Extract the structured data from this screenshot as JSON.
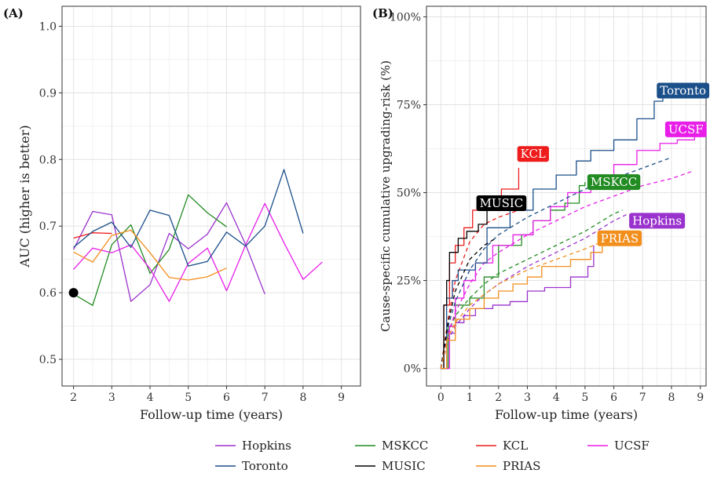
{
  "figure": {
    "legend_order": [
      "Hopkins",
      "MSKCC",
      "KCL",
      "UCSF",
      "Toronto",
      "MUSIC",
      "PRIAS"
    ],
    "colors": {
      "Hopkins": "#9a32cd",
      "MSKCC": "#228b22",
      "KCL": "#ee1c1c",
      "UCSF": "#e81ee8",
      "Toronto": "#1b4f8a",
      "MUSIC": "#000000",
      "PRIAS": "#f28e1c"
    }
  },
  "chart_data": [
    {
      "panel_label": "(A)",
      "type": "line",
      "xlabel": "Follow-up time (years)",
      "ylabel": "AUC (higher is better)",
      "xlim": [
        1.7,
        9.5
      ],
      "ylim": [
        0.46,
        1.03
      ],
      "xticks": [
        "2",
        "3",
        "4",
        "5",
        "6",
        "7",
        "8",
        "9"
      ],
      "yticks": [
        "0.5",
        "0.6",
        "0.7",
        "0.8",
        "0.9",
        "1.0"
      ],
      "grid": true,
      "series": [
        {
          "name": "Hopkins",
          "x": [
            2,
            2.5,
            3,
            3.5,
            4,
            4.5,
            5,
            5.5,
            6,
            6.5,
            7
          ],
          "y": [
            0.665,
            0.722,
            0.717,
            0.587,
            0.612,
            0.689,
            0.666,
            0.688,
            0.735,
            0.672,
            0.598
          ]
        },
        {
          "name": "MSKCC",
          "x": [
            2,
            2.5,
            3,
            3.5,
            4,
            4.5,
            5,
            5.5,
            6
          ],
          "y": [
            0.598,
            0.581,
            0.672,
            0.702,
            0.629,
            0.665,
            0.747,
            0.72,
            0.699
          ]
        },
        {
          "name": "KCL",
          "x": [
            2,
            2.5,
            3
          ],
          "y": [
            0.682,
            0.69,
            0.689
          ]
        },
        {
          "name": "UCSF",
          "x": [
            2,
            2.5,
            3,
            3.5,
            4,
            4.5,
            5,
            5.5,
            6,
            6.5,
            7,
            7.5,
            8,
            8.5
          ],
          "y": [
            0.635,
            0.667,
            0.66,
            0.672,
            0.636,
            0.587,
            0.644,
            0.667,
            0.603,
            0.672,
            0.734,
            0.675,
            0.62,
            0.646
          ]
        },
        {
          "name": "Toronto",
          "x": [
            2,
            2.5,
            3,
            3.5,
            4,
            4.5,
            5,
            5.5,
            6,
            6.5,
            7,
            7.5,
            8
          ],
          "y": [
            0.668,
            0.692,
            0.706,
            0.668,
            0.724,
            0.716,
            0.64,
            0.647,
            0.691,
            0.67,
            0.7,
            0.785,
            0.689
          ]
        },
        {
          "name": "MUSIC",
          "x": [
            2
          ],
          "y": [
            0.6
          ],
          "marker": "point"
        },
        {
          "name": "PRIAS",
          "x": [
            2,
            2.5,
            3,
            3.5,
            4,
            4.5,
            5,
            5.5,
            6
          ],
          "y": [
            0.661,
            0.646,
            0.686,
            0.694,
            0.66,
            0.623,
            0.619,
            0.624,
            0.637
          ]
        }
      ]
    },
    {
      "panel_label": "(B)",
      "type": "line",
      "xlabel": "Follow-up time (years)",
      "ylabel": "Cause-specific cumulative upgrading-risk (%)",
      "xlim": [
        -0.5,
        9.2
      ],
      "ylim": [
        -5,
        103
      ],
      "xticks": [
        "0",
        "1",
        "2",
        "3",
        "4",
        "5",
        "6",
        "7",
        "8",
        "9"
      ],
      "yticks": [
        "0%",
        "25%",
        "50%",
        "75%",
        "100%"
      ],
      "grid": true,
      "series": [
        {
          "name": "Hopkins",
          "line": "step",
          "x": [
            0,
            0.3,
            0.5,
            0.8,
            1.2,
            1.8,
            2.4,
            3,
            3.6,
            4.5,
            5.1,
            5.3
          ],
          "y": [
            0,
            10,
            13,
            15,
            17,
            18,
            19,
            22,
            23,
            26,
            29,
            35
          ]
        },
        {
          "name": "Hopkins",
          "line": "dashed",
          "x": [
            0,
            0.25,
            0.5,
            1,
            1.5,
            2,
            3,
            4,
            5,
            6,
            6.5
          ],
          "y": [
            0,
            8,
            12,
            17,
            21,
            24,
            29,
            33,
            37,
            42,
            44
          ]
        },
        {
          "name": "MSKCC",
          "line": "step",
          "x": [
            0,
            0.25,
            0.5,
            1,
            1.5,
            2,
            2.8,
            3.2,
            3.8,
            4.3,
            4.8,
            5
          ],
          "y": [
            0,
            12,
            18,
            20,
            26,
            35,
            38,
            42,
            45,
            47,
            52,
            53
          ]
        },
        {
          "name": "MSKCC",
          "line": "dashed",
          "x": [
            0,
            0.25,
            0.5,
            1,
            1.5,
            2,
            3,
            4,
            5,
            6,
            6.3
          ],
          "y": [
            0,
            10,
            15,
            20,
            24,
            27,
            31,
            35,
            39,
            44,
            45
          ]
        },
        {
          "name": "KCL",
          "line": "step",
          "x": [
            0,
            0.1,
            0.3,
            0.5,
            0.8,
            1.1,
            1.5,
            2.1,
            2.7
          ],
          "y": [
            0,
            18,
            30,
            35,
            40,
            45,
            48,
            51,
            57
          ]
        },
        {
          "name": "KCL",
          "line": "dashed",
          "x": [
            0,
            0.25,
            0.5,
            1,
            1.5,
            2,
            2.7
          ],
          "y": [
            0,
            14,
            25,
            36,
            41,
            43,
            45
          ]
        },
        {
          "name": "UCSF",
          "line": "step",
          "x": [
            0,
            0.3,
            0.5,
            0.8,
            1.2,
            1.8,
            2.5,
            3.2,
            3.8,
            4.4,
            5.2,
            6,
            6.8,
            7.6,
            8.2,
            8.8
          ],
          "y": [
            0,
            12,
            20,
            25,
            30,
            35,
            38,
            42,
            46,
            50,
            54,
            58,
            62,
            64,
            65,
            68
          ]
        },
        {
          "name": "UCSF",
          "line": "dashed",
          "x": [
            0,
            0.25,
            0.5,
            1,
            1.5,
            2,
            3,
            4,
            5,
            6,
            7,
            8,
            8.7
          ],
          "y": [
            0,
            10,
            16,
            24,
            30,
            33,
            38,
            42,
            46,
            49,
            52,
            54,
            56
          ]
        },
        {
          "name": "Toronto",
          "line": "step",
          "x": [
            0,
            0.2,
            0.4,
            0.6,
            1.2,
            1.6,
            2.4,
            3.2,
            4,
            4.7,
            5.2,
            6,
            6.8,
            7.4,
            7.7
          ],
          "y": [
            0,
            20,
            25,
            28,
            30,
            40,
            45,
            51,
            55,
            59,
            62,
            65,
            71,
            76,
            79
          ]
        },
        {
          "name": "Toronto",
          "line": "dashed",
          "x": [
            0,
            0.25,
            0.5,
            1,
            1.5,
            2,
            3,
            4,
            5,
            6,
            7,
            8
          ],
          "y": [
            0,
            12,
            19,
            28,
            34,
            38,
            43,
            47,
            51,
            54,
            57,
            60
          ]
        },
        {
          "name": "MUSIC",
          "line": "step",
          "x": [
            0,
            0.1,
            0.2,
            0.3,
            0.6,
            0.9,
            1.3,
            1.6,
            1.9
          ],
          "y": [
            0,
            18,
            25,
            33,
            37,
            39,
            41,
            45,
            48
          ]
        },
        {
          "name": "MUSIC",
          "line": "dashed",
          "x": [
            0,
            0.25,
            0.5,
            1,
            1.5,
            1.9
          ],
          "y": [
            0,
            13,
            22,
            31,
            35,
            37
          ]
        },
        {
          "name": "PRIAS",
          "line": "step",
          "x": [
            0,
            0.2,
            0.5,
            1,
            1.5,
            2,
            2.5,
            3,
            3.5,
            4.5,
            5.2,
            5.6
          ],
          "y": [
            0,
            8,
            14,
            17,
            20,
            22,
            24,
            26,
            29,
            31,
            33,
            35
          ]
        },
        {
          "name": "PRIAS",
          "line": "dashed",
          "x": [
            0,
            0.25,
            0.5,
            1,
            1.5,
            2,
            3,
            4,
            5,
            5.6
          ],
          "y": [
            0,
            9,
            13,
            18,
            21,
            24,
            28,
            31,
            34,
            36
          ]
        }
      ],
      "annotations": [
        {
          "text": "Toronto",
          "series": "Toronto",
          "x": 8.4,
          "y": 79
        },
        {
          "text": "UCSF",
          "series": "UCSF",
          "x": 8.5,
          "y": 68
        },
        {
          "text": "KCL",
          "series": "KCL",
          "x": 3.2,
          "y": 61
        },
        {
          "text": "MSKCC",
          "series": "MSKCC",
          "x": 6,
          "y": 53
        },
        {
          "text": "MUSIC",
          "series": "MUSIC",
          "x": 2.1,
          "y": 47
        },
        {
          "text": "Hopkins",
          "series": "Hopkins",
          "x": 7.5,
          "y": 42
        },
        {
          "text": "PRIAS",
          "series": "PRIAS",
          "x": 6.2,
          "y": 37
        }
      ]
    }
  ]
}
